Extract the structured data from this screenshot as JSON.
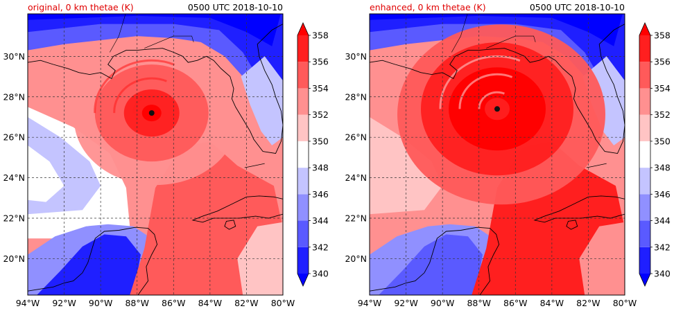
{
  "panels": [
    {
      "title_left": "original, 0 km thetae (K)",
      "title_right": "0500 UTC 2018-10-10",
      "center": {
        "lon": -87.2,
        "lat": 27.2
      },
      "core_level": 3
    },
    {
      "title_left": "enhanced, 0 km thetae (K)",
      "title_right": "0500 UTC 2018-10-10",
      "center": {
        "lon": -87.0,
        "lat": 27.4
      },
      "core_level": 4
    }
  ],
  "axes": {
    "lon_range": [
      -94,
      -80
    ],
    "lat_range": [
      18.2,
      32.1
    ],
    "lon_ticks": [
      {
        "v": -94,
        "label": "94°W"
      },
      {
        "v": -92,
        "label": "92°W"
      },
      {
        "v": -90,
        "label": "90°W"
      },
      {
        "v": -88,
        "label": "88°W"
      },
      {
        "v": -86,
        "label": "86°W"
      },
      {
        "v": -84,
        "label": "84°W"
      },
      {
        "v": -82,
        "label": "82°W"
      },
      {
        "v": -80,
        "label": "80°W"
      }
    ],
    "lat_ticks": [
      {
        "v": 20,
        "label": "20°N"
      },
      {
        "v": 22,
        "label": "22°N"
      },
      {
        "v": 24,
        "label": "24°N"
      },
      {
        "v": 26,
        "label": "26°N"
      },
      {
        "v": 28,
        "label": "28°N"
      },
      {
        "v": 30,
        "label": "30°N"
      }
    ]
  },
  "colorbar": {
    "ticks": [
      "340",
      "342",
      "344",
      "346",
      "348",
      "350",
      "352",
      "354",
      "356",
      "358"
    ],
    "colors": [
      "#1f1fff",
      "#5a5aff",
      "#9090ff",
      "#c4c4ff",
      "#ffffff",
      "#ffc4c4",
      "#ff9090",
      "#ff5a5a",
      "#ff1f1f"
    ],
    "under_color": "#0000ff",
    "over_color": "#ff0000"
  },
  "colors": {
    "title_left": "#e00000",
    "land_line": "#000000",
    "grid": "#333333"
  }
}
